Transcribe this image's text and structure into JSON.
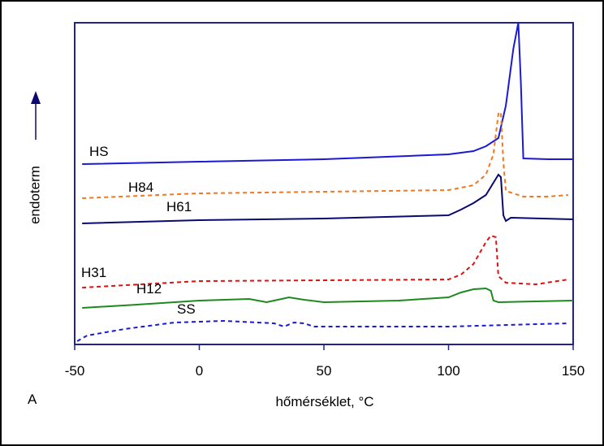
{
  "chart_data": {
    "type": "line",
    "xlabel": "hőmérséklet, °C",
    "ylabel": "endoterm",
    "panel_label": "A",
    "xlim": [
      -50,
      150
    ],
    "xticks": [
      -50,
      0,
      50,
      100,
      150
    ],
    "ylim": [
      0,
      396
    ],
    "series": [
      {
        "name": "HS",
        "color": "#1a1ad6",
        "dashed": false,
        "x": [
          -47,
          0,
          50,
          100,
          110,
          115,
          120,
          123,
          126,
          128,
          129,
          130,
          140,
          150
        ],
        "values": [
          222,
          225,
          228,
          234,
          238,
          244,
          254,
          294,
          364,
          396,
          324,
          229,
          228,
          228
        ]
      },
      {
        "name": "H84",
        "color": "#f07820",
        "dashed": true,
        "x": [
          -47,
          0,
          100,
          110,
          115,
          118,
          120,
          121,
          122,
          123,
          130,
          140,
          148
        ],
        "values": [
          180,
          186,
          190,
          196,
          209,
          234,
          284,
          286,
          224,
          189,
          182,
          182,
          184
        ]
      },
      {
        "name": "H61",
        "color": "#0a0a70",
        "dashed": false,
        "x": [
          -47,
          0,
          50,
          100,
          105,
          110,
          115,
          119,
          120,
          121,
          122,
          123,
          125,
          150
        ],
        "values": [
          149,
          153,
          155,
          159,
          166,
          174,
          184,
          204,
          209,
          206,
          159,
          152,
          156,
          154
        ]
      },
      {
        "name": "H31",
        "color": "#e01010",
        "dashed": true,
        "x": [
          -47,
          0,
          100,
          105,
          110,
          115,
          117,
          119,
          120,
          123,
          135,
          148
        ],
        "values": [
          70,
          78,
          80,
          86,
          99,
          126,
          134,
          132,
          84,
          76,
          74,
          80
        ]
      },
      {
        "name": "H12",
        "color": "#1e8a1e",
        "dashed": false,
        "x": [
          -47,
          -25,
          0,
          20,
          27,
          30,
          36,
          42,
          50,
          80,
          100,
          105,
          110,
          115,
          117,
          118,
          120,
          150
        ],
        "values": [
          45,
          49,
          54,
          56,
          52,
          54,
          58,
          55,
          52,
          54,
          58,
          64,
          68,
          69,
          66,
          54,
          52,
          54
        ]
      },
      {
        "name": "SS",
        "color": "#1a1ad6",
        "dashed": true,
        "x": [
          -49,
          -45,
          -30,
          -10,
          10,
          30,
          34,
          38,
          42,
          46,
          60,
          100,
          148
        ],
        "values": [
          4,
          11,
          19,
          27,
          29,
          26,
          22,
          27,
          26,
          22,
          22,
          22,
          26
        ]
      }
    ]
  }
}
